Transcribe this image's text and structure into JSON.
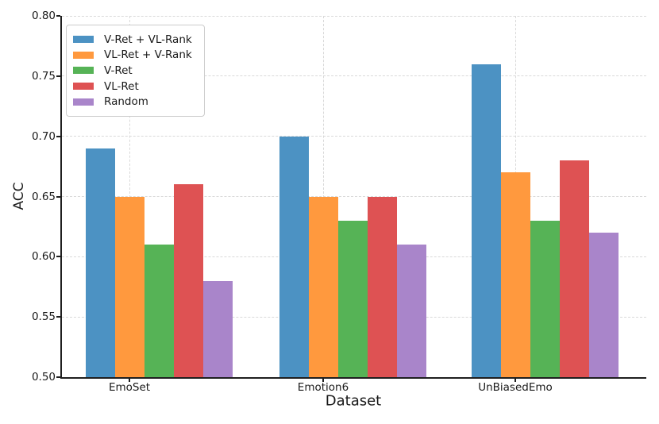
{
  "chart_data": {
    "type": "bar",
    "title": "",
    "xlabel": "Dataset",
    "ylabel": "ACC",
    "categories": [
      "EmoSet",
      "Emotion6",
      "UnBiasedEmo"
    ],
    "series": [
      {
        "name": "V-Ret + VL-Rank",
        "color": "#4C92C3",
        "values": [
          0.69,
          0.7,
          0.76
        ]
      },
      {
        "name": "VL-Ret + V-Rank",
        "color": "#FF993E",
        "values": [
          0.65,
          0.65,
          0.67
        ]
      },
      {
        "name": "V-Ret",
        "color": "#56B356",
        "values": [
          0.61,
          0.63,
          0.63
        ]
      },
      {
        "name": "VL-Ret",
        "color": "#DE5253",
        "values": [
          0.66,
          0.65,
          0.68
        ]
      },
      {
        "name": "Random",
        "color": "#A985CA",
        "values": [
          0.58,
          0.61,
          0.62
        ]
      }
    ],
    "ylim": [
      0.5,
      0.8
    ],
    "yticks": [
      "0.50",
      "0.55",
      "0.60",
      "0.65",
      "0.70",
      "0.75",
      "0.80"
    ],
    "grid": true,
    "grid_style": "dashed",
    "legend_position": "upper left",
    "axis_color": "#1f1f1f",
    "grid_color": "#d9d9d9"
  }
}
